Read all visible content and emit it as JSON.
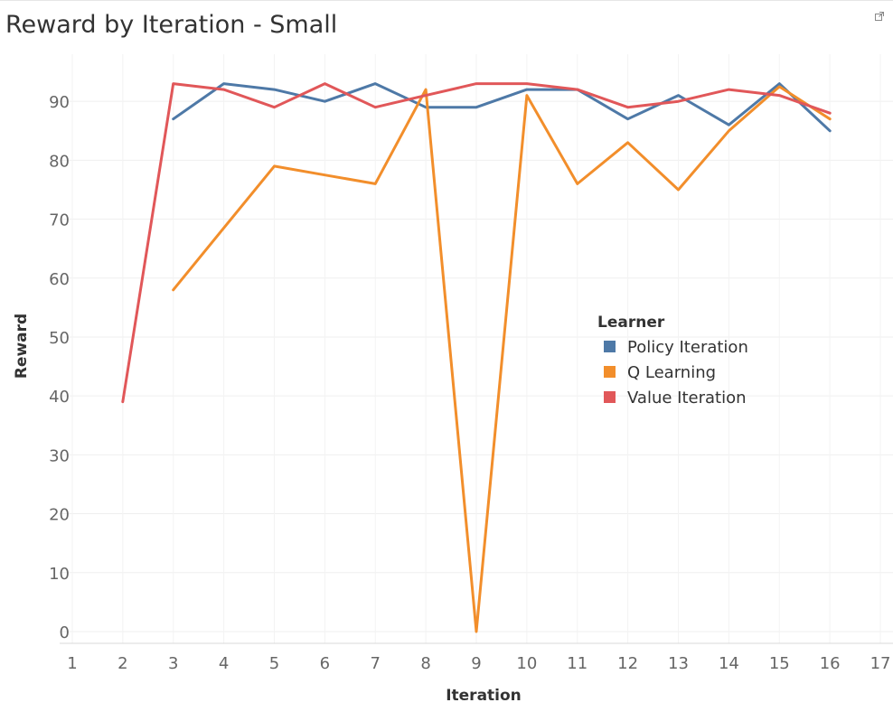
{
  "title": "Reward by Iteration - Small",
  "icons": {
    "popout": "external-link-icon"
  },
  "chart_data": {
    "type": "line",
    "title": "Reward by Iteration - Small",
    "xlabel": "Iteration",
    "ylabel": "Reward",
    "xlim": [
      0.75,
      17.25
    ],
    "ylim": [
      -2,
      98
    ],
    "x_ticks": [
      1,
      2,
      3,
      4,
      5,
      6,
      7,
      8,
      9,
      10,
      11,
      12,
      13,
      14,
      15,
      16,
      17
    ],
    "y_ticks": [
      0,
      10,
      20,
      30,
      40,
      50,
      60,
      70,
      80,
      90
    ],
    "grid": true,
    "legend": {
      "title": "Learner",
      "placement": "right-middle"
    },
    "series": [
      {
        "name": "Policy Iteration",
        "color": "#4e79a7",
        "x": [
          3,
          4,
          5,
          6,
          7,
          8,
          9,
          10,
          11,
          12,
          13,
          14,
          15,
          16
        ],
        "y": [
          87,
          93,
          92,
          90,
          93,
          89,
          89,
          92,
          92,
          87,
          91,
          86,
          93,
          85
        ]
      },
      {
        "name": "Q Learning",
        "color": "#f28e2b",
        "x": [
          3,
          4,
          5,
          6,
          7,
          8,
          9,
          10,
          11,
          12,
          13,
          14,
          15,
          16
        ],
        "y": [
          58,
          68.5,
          79,
          77.5,
          76,
          92,
          0,
          91,
          76,
          83,
          75,
          85,
          92.5,
          87
        ]
      },
      {
        "name": "Value Iteration",
        "color": "#e15759",
        "x": [
          2,
          3,
          4,
          5,
          6,
          7,
          8,
          9,
          10,
          11,
          12,
          13,
          14,
          15,
          16
        ],
        "y": [
          39,
          93,
          92,
          89,
          93,
          89,
          91,
          93,
          93,
          92,
          89,
          90,
          92,
          91,
          88
        ]
      }
    ]
  }
}
